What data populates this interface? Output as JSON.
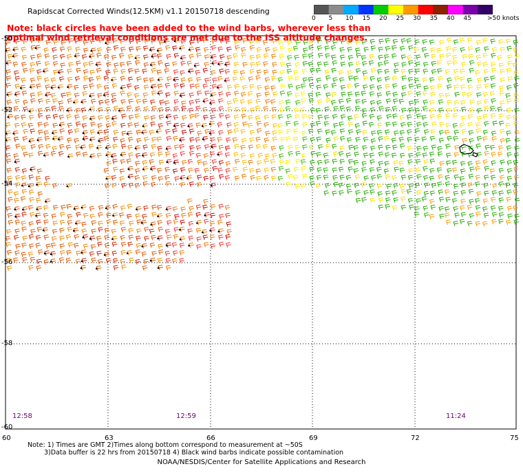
{
  "title": "Rapidscat Corrected Winds(12.5KM) v1.1 20150718 descending",
  "note": "Note: black circles have been added to the wind barbs, wherever less than optimal wind retrieval conditions are met due to the ISS altitude changes.",
  "color_scale": {
    "unit_label": ">50 knots",
    "labels": [
      "0",
      "5",
      "10",
      "15",
      "20",
      "25",
      "30",
      "35",
      "40",
      "45"
    ],
    "colors": [
      "#555555",
      "#8c8c8c",
      "#00aaff",
      "#0033ff",
      "#00cc00",
      "#ffff00",
      "#ff9900",
      "#ff0000",
      "#8b2200",
      "#ff00ff",
      "#7a00aa",
      "#330066"
    ]
  },
  "axes": {
    "lon_labels": [
      "60",
      "63",
      "66",
      "69",
      "72",
      "75"
    ],
    "lat_labels": [
      "-50",
      "-52",
      "-54",
      "-56",
      "-58",
      "-60"
    ]
  },
  "times": [
    "12:58",
    "12:59",
    "11:24"
  ],
  "footnote": {
    "line1": "Note: 1) Times are GMT 2)Times along bottom correspond to measurement at ~50S",
    "line2": "3)Data buffer is 22 hrs from 20150718 4) Black wind barbs indicate possible contamination"
  },
  "credit": "NOAA/NESDIS/Center for Satellite Applications and Research"
}
